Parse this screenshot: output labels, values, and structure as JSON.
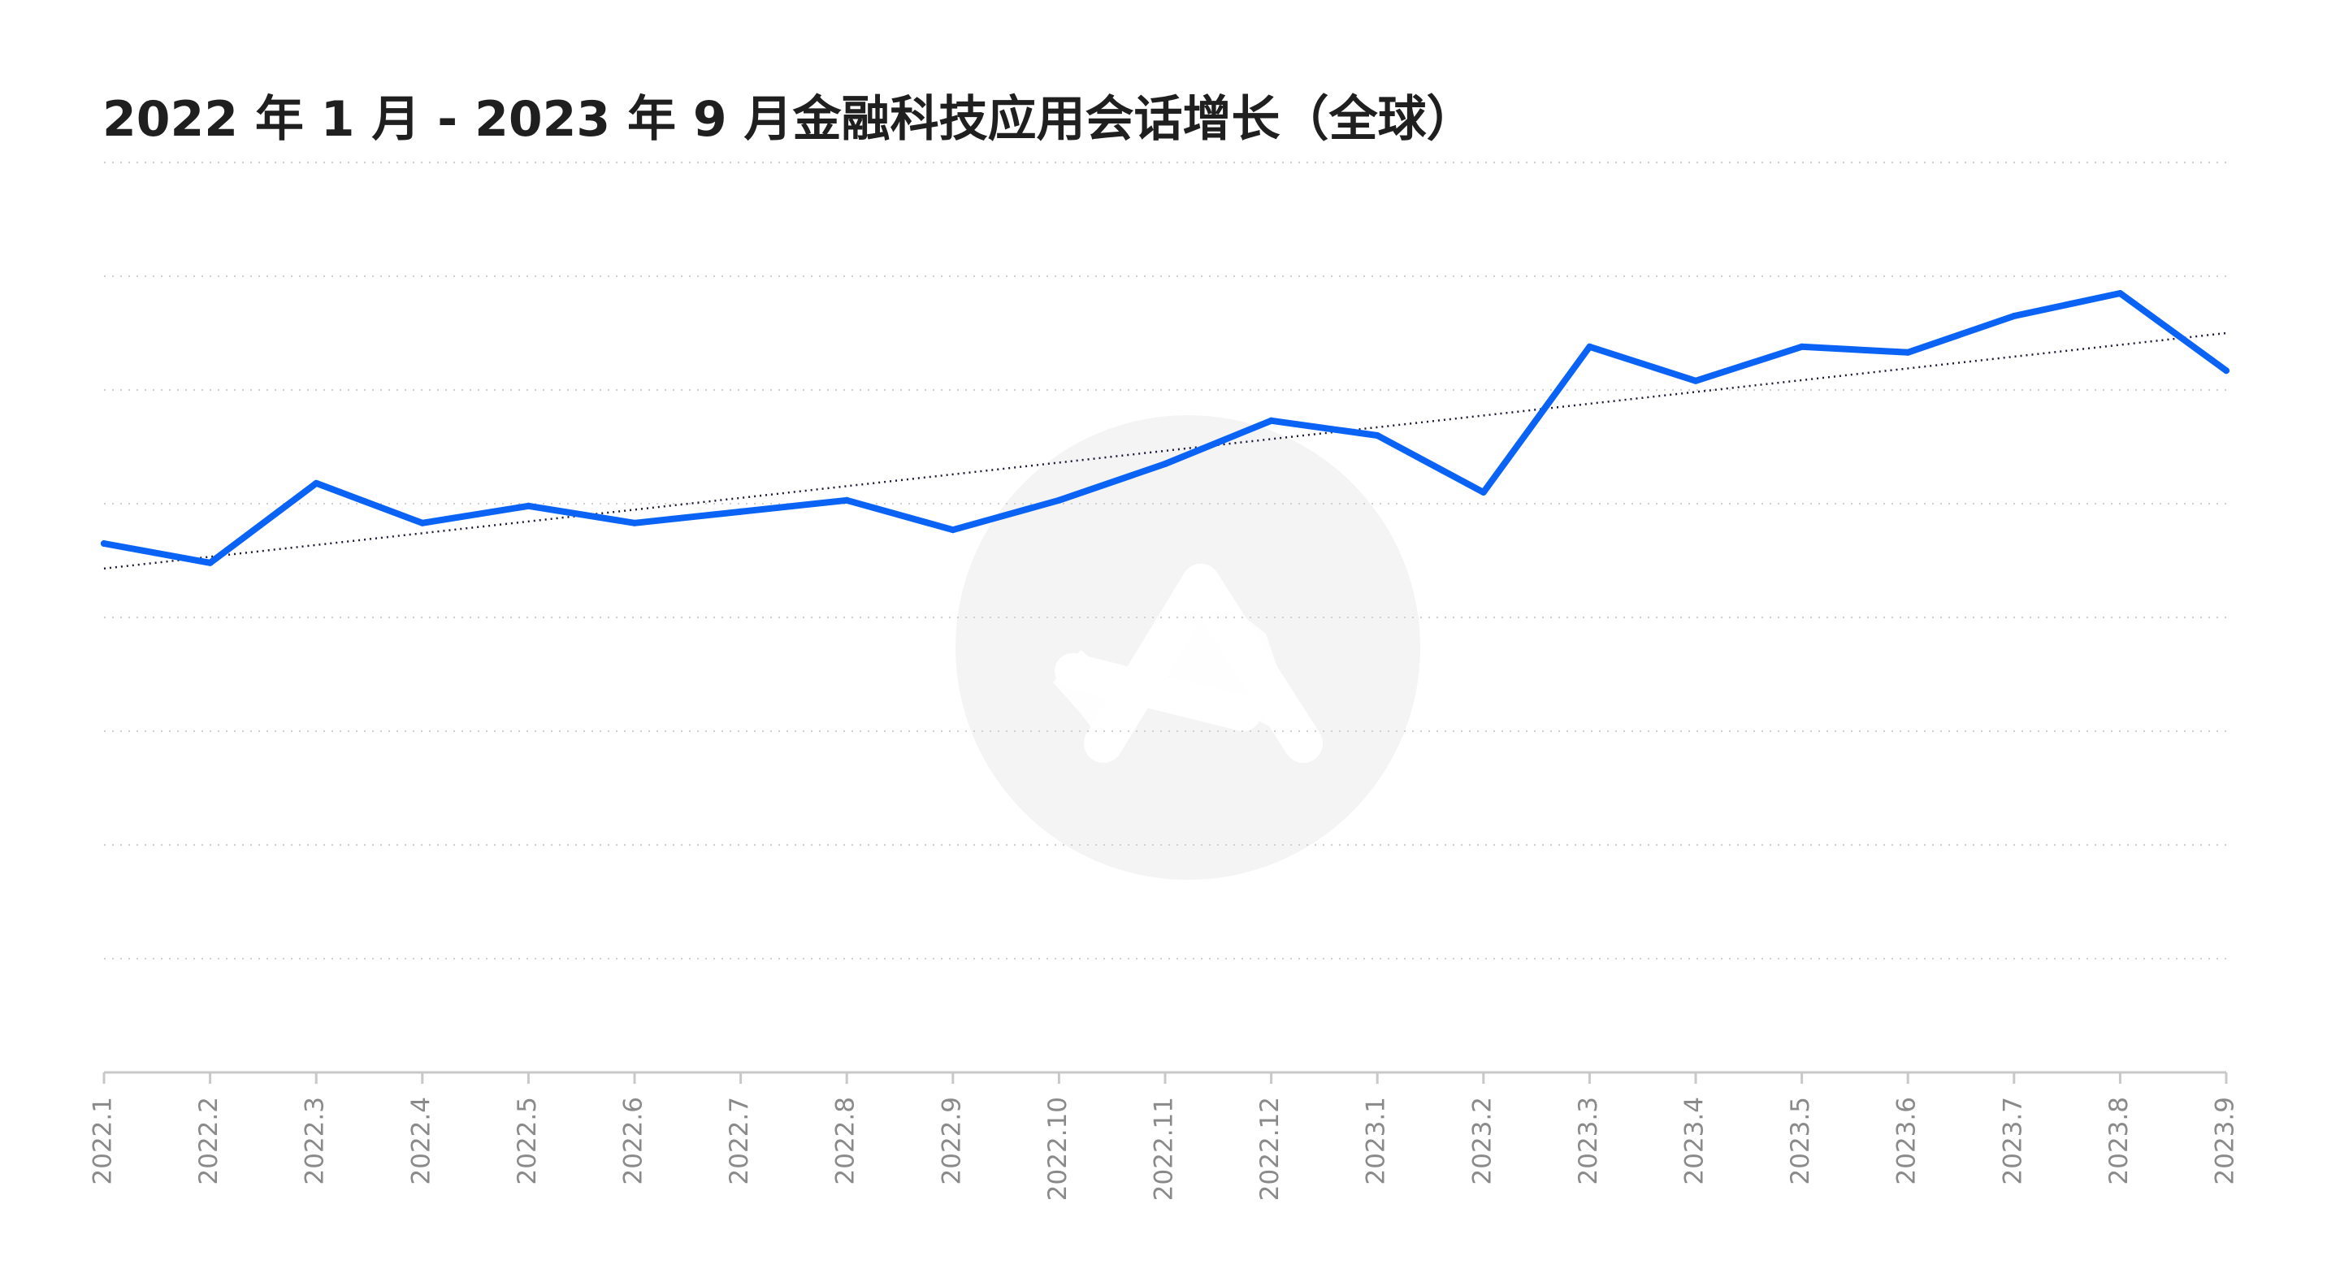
{
  "chart_data": {
    "type": "line",
    "title": "2022 年 1 月 - 2023 年 9 月金融科技应用会话增长（全球）",
    "xlabel": "",
    "ylabel": "",
    "categories": [
      "2022.1",
      "2022.2",
      "2022.3",
      "2022.4",
      "2022.5",
      "2022.6",
      "2022.7",
      "2022.8",
      "2022.9",
      "2022.10",
      "2022.11",
      "2022.12",
      "2023.1",
      "2023.2",
      "2023.3",
      "2023.4",
      "2023.5",
      "2023.6",
      "2023.7",
      "2023.8",
      "2023.9"
    ],
    "series": [
      {
        "values": [
          46.5,
          44.8,
          51.8,
          48.3,
          49.8,
          48.3,
          49.3,
          50.3,
          47.7,
          50.3,
          53.5,
          57.3,
          56.0,
          51.0,
          63.8,
          60.8,
          63.8,
          63.3,
          66.5,
          68.5,
          61.7
        ],
        "color": "#0b63f6"
      }
    ],
    "trendline": {
      "style": "dotted",
      "color": "#1a1a3a",
      "start": 44.3,
      "end": 65.0
    },
    "ylim": [
      0,
      80
    ],
    "gridlines": 8,
    "grid": true,
    "legend": "none",
    "watermark": "logo"
  }
}
